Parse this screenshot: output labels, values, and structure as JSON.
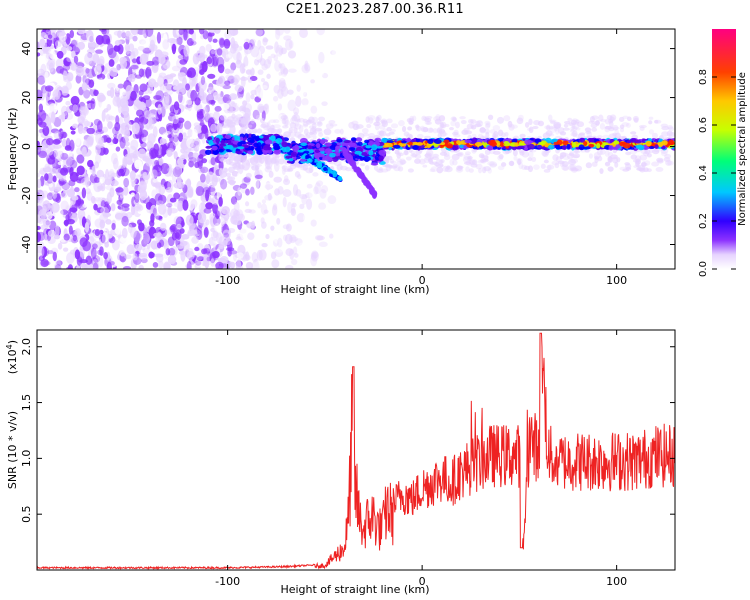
{
  "title": "C2E1.2023.287.00.36.R11",
  "chart_data": [
    {
      "type": "heatmap",
      "xlabel": "Height of straight line (km)",
      "ylabel": "Frequency (Hz)",
      "xlim": [
        -198,
        130
      ],
      "ylim": [
        -50,
        48
      ],
      "xticks": [
        -100,
        0,
        100
      ],
      "yticks": [
        -40,
        -20,
        0,
        20,
        40
      ],
      "colorbar": {
        "label": "Normalized spectral amplitude",
        "range": [
          0.0,
          1.0
        ],
        "ticks": [
          "0.0",
          "0.2",
          "0.4",
          "0.6",
          "0.8"
        ],
        "tick_values": [
          0.0,
          0.2,
          0.4,
          0.6,
          0.8
        ]
      },
      "colormap": [
        "#ffffff",
        "#e6d2ff",
        "#8c32ff",
        "#5a00e6",
        "#0000ff",
        "#00c8ff",
        "#00ff78",
        "#c8ff00",
        "#ffc800",
        "#ff2000",
        "#ff0080"
      ],
      "features": {
        "noise_region_x": [
          -198,
          -75
        ],
        "signal_band_x": [
          -110,
          130
        ],
        "signal_center_hz": 1,
        "strong_signal_from_x": -20
      }
    },
    {
      "type": "line",
      "xlabel": "Height of straight line (km)",
      "ylabel": "SNR (10 * v/v)",
      "y_multiplier": "(x10",
      "y_multiplier_exp": "4",
      "y_multiplier_close": ")",
      "xlim": [
        -198,
        130
      ],
      "ylim": [
        0.0,
        2.15
      ],
      "xticks": [
        -100,
        0,
        100
      ],
      "yticks": [
        0.5,
        1.0,
        1.5,
        2.0
      ],
      "ytick_labels": [
        "0.5",
        "1.0",
        "1.5",
        "2.0"
      ],
      "color": "#ee2222",
      "series": [
        {
          "x": [
            -198,
            -150,
            -100,
            -70,
            -50,
            -45,
            -40,
            -38,
            -36,
            -35,
            -34,
            -32,
            -30,
            -28,
            -25,
            -22,
            -20,
            -18,
            -15,
            -10,
            -5,
            0,
            5,
            10,
            15,
            20,
            25,
            30,
            35,
            40,
            45,
            50,
            52,
            55,
            60,
            62,
            65,
            70,
            80,
            90,
            100,
            110,
            120,
            130
          ],
          "y": [
            0.02,
            0.02,
            0.02,
            0.03,
            0.05,
            0.15,
            0.25,
            0.55,
            1.55,
            1.05,
            0.85,
            0.55,
            0.45,
            0.55,
            0.6,
            0.45,
            0.5,
            0.7,
            0.6,
            0.7,
            0.65,
            0.75,
            0.8,
            0.85,
            0.8,
            0.9,
            0.95,
            1.0,
            1.05,
            1.05,
            1.05,
            1.05,
            0.2,
            1.2,
            1.1,
            1.85,
            1.05,
            1.0,
            1.0,
            1.0,
            1.0,
            1.0,
            1.05,
            1.05
          ]
        }
      ]
    }
  ]
}
